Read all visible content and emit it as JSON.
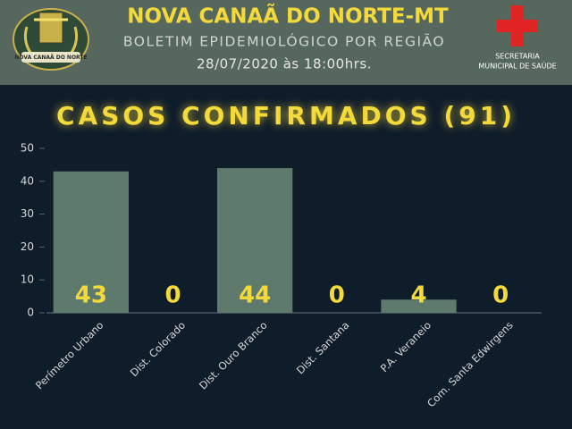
{
  "header": {
    "title": "NOVA CANAÃ DO NORTE-MT",
    "subtitle": "BOLETIM EPIDEMIOLÓGICO POR REGIÃO",
    "date": "28/07/2020 às 18:00hrs.",
    "logo_text": "NOVA CANAÃ DO NORTE",
    "secretaria_line1": "SECRETARIA",
    "secretaria_line2": "MUNICIPAL DE SAÚDE"
  },
  "chart_data": {
    "type": "bar",
    "title": "CASOS CONFIRMADOS (91)",
    "categories": [
      "Perímetro Urbano",
      "Dist. Colorado",
      "Dist. Ouro Branco",
      "Dist. Santana",
      "P.A. Veraneio",
      "Com. Santa Edwirgens"
    ],
    "values": [
      43,
      0,
      44,
      0,
      4,
      0
    ],
    "color": "#5e7a6c",
    "label_color": "#f3d93a",
    "ylim": [
      0,
      50
    ],
    "yticks": [
      0,
      10,
      20,
      30,
      40,
      50
    ],
    "grid": false
  }
}
